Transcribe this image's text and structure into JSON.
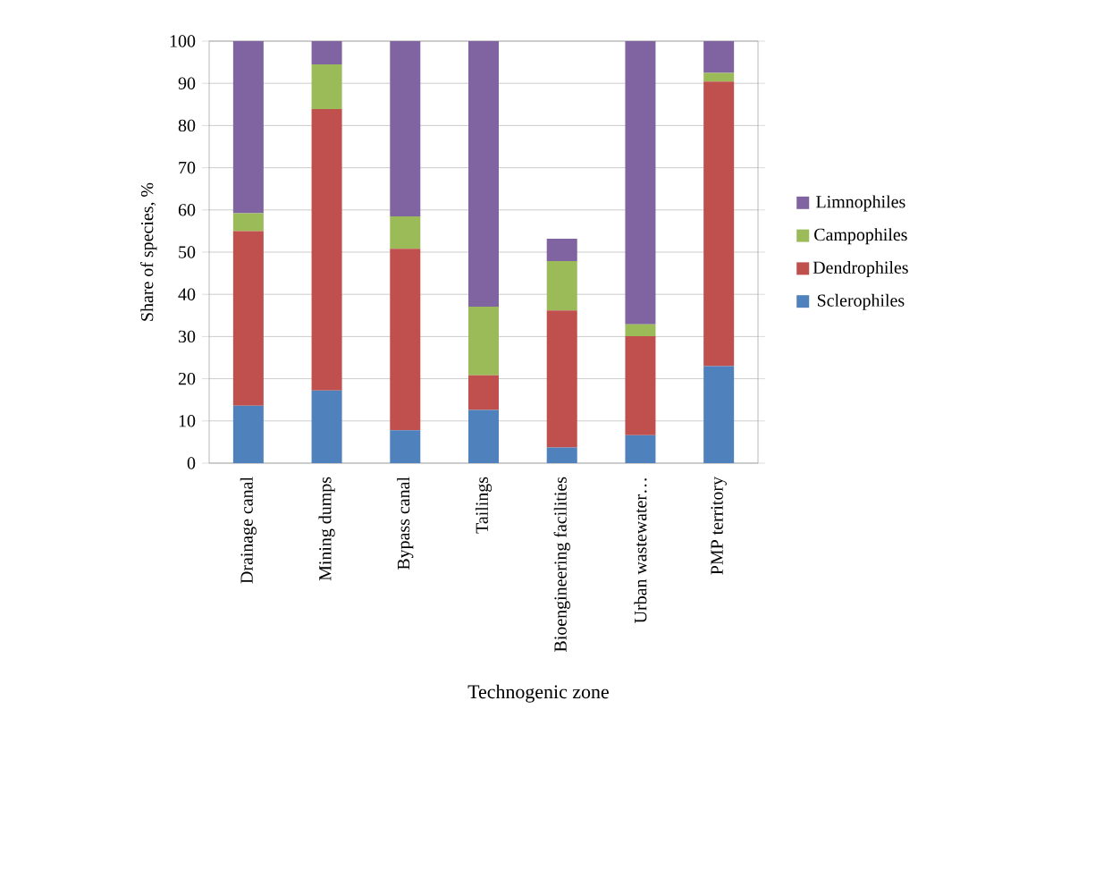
{
  "chart_data": {
    "type": "bar",
    "stacked": true,
    "xlabel": "Technogenic zone",
    "ylabel": "Share of species, %",
    "categories": [
      "Drainage canal",
      "Mining dumps",
      "Bypass canal",
      "Tailings",
      "Bioengineering facilities",
      "Urban wastewater…",
      "PMP territory"
    ],
    "series": [
      {
        "name": "Sclerophiles",
        "color": "#4f81bd",
        "values": [
          13.6,
          17.2,
          7.8,
          12.6,
          3.7,
          6.6,
          23.0
        ]
      },
      {
        "name": "Dendrophiles",
        "color": "#c0504d",
        "values": [
          41.4,
          66.7,
          43.0,
          8.2,
          32.5,
          23.5,
          67.4
        ]
      },
      {
        "name": "Campophiles",
        "color": "#9bbb59",
        "values": [
          4.2,
          10.6,
          7.7,
          16.3,
          11.7,
          2.8,
          2.1
        ]
      },
      {
        "name": "Limnophiles",
        "color": "#8064a2",
        "values": [
          40.8,
          5.5,
          41.5,
          62.9,
          5.3,
          67.1,
          7.5
        ]
      }
    ],
    "ylim": [
      0,
      100
    ],
    "yticks": [
      0,
      10,
      20,
      30,
      40,
      50,
      60,
      70,
      80,
      90,
      100
    ],
    "grid": "y",
    "legend": "right"
  }
}
